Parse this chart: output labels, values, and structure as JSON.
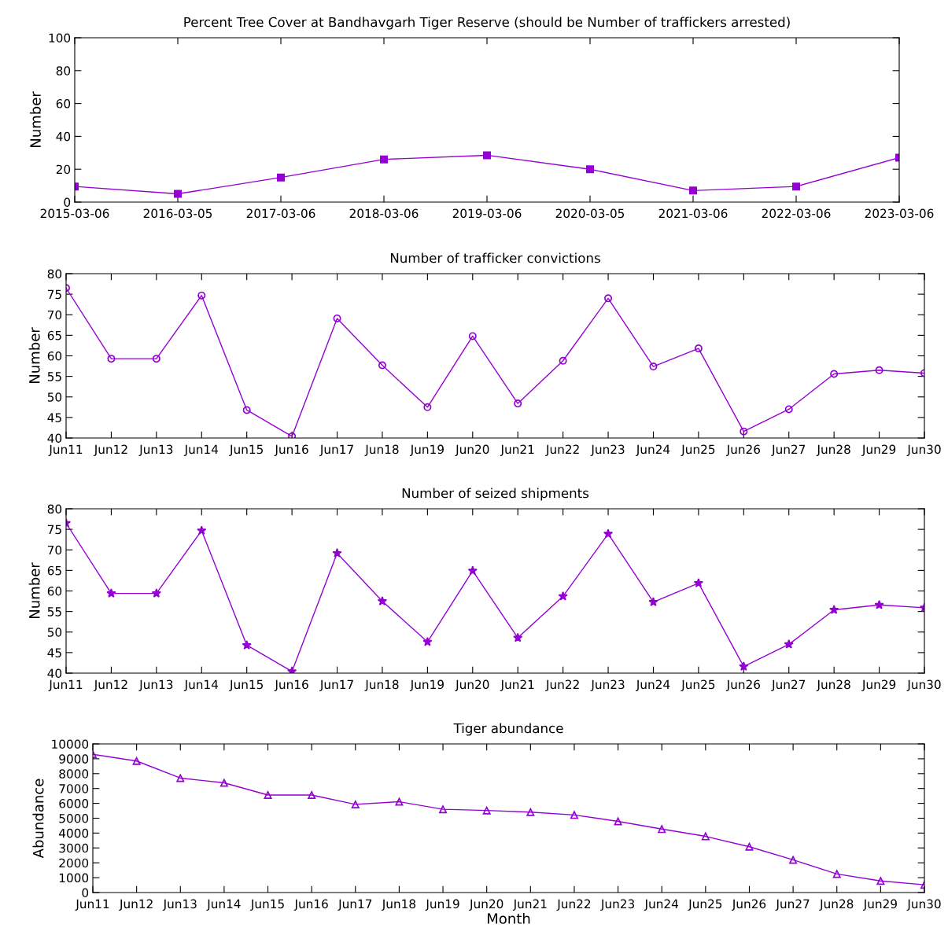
{
  "chart_data": [
    {
      "type": "line",
      "title": "Percent Tree Cover at Bandhavgarh Tiger Reserve (should be Number of traffickers arrested)",
      "ylabel": "Number",
      "categories": [
        "2015-03-06",
        "2016-03-05",
        "2017-03-06",
        "2018-03-06",
        "2019-03-06",
        "2020-03-05",
        "2021-03-06",
        "2022-03-06",
        "2023-03-06"
      ],
      "series": [
        {
          "color": "#9400d3",
          "values": [
            9.5,
            5,
            15,
            26,
            28.5,
            20,
            7,
            9.5,
            27
          ]
        }
      ],
      "ylim": [
        0,
        100
      ],
      "yticks": [
        0,
        20,
        40,
        60,
        80,
        100
      ],
      "grid": false,
      "legend": false,
      "marker": "square",
      "line_style": "solid"
    },
    {
      "type": "line",
      "title": "Number of trafficker convictions",
      "ylabel": "Number",
      "categories": [
        "Jun11",
        "Jun12",
        "Jun13",
        "Jun14",
        "Jun15",
        "Jun16",
        "Jun17",
        "Jun18",
        "Jun19",
        "Jun20",
        "Jun21",
        "Jun22",
        "Jun23",
        "Jun24",
        "Jun25",
        "Jun26",
        "Jun27",
        "Jun28",
        "Jun29",
        "Jun30"
      ],
      "series": [
        {
          "color": "#9400d3",
          "values": [
            76.5,
            59.3,
            59.3,
            74.7,
            46.8,
            40.4,
            69.1,
            57.7,
            47.5,
            64.8,
            48.4,
            58.8,
            74.0,
            57.4,
            61.8,
            41.6,
            47.0,
            55.6,
            56.5,
            55.8
          ]
        }
      ],
      "ylim": [
        40,
        80
      ],
      "yticks": [
        40,
        45,
        50,
        55,
        60,
        65,
        70,
        75,
        80
      ],
      "grid": false,
      "legend": false,
      "marker": "circle",
      "line_style": "solid"
    },
    {
      "type": "line",
      "title": "Number of seized shipments",
      "ylabel": "Number",
      "categories": [
        "Jun11",
        "Jun12",
        "Jun13",
        "Jun14",
        "Jun15",
        "Jun16",
        "Jun17",
        "Jun18",
        "Jun19",
        "Jun20",
        "Jun21",
        "Jun22",
        "Jun23",
        "Jun24",
        "Jun25",
        "Jun26",
        "Jun27",
        "Jun28",
        "Jun29",
        "Jun30"
      ],
      "series": [
        {
          "color": "#9400d3",
          "values": [
            76.5,
            59.4,
            59.4,
            74.7,
            46.8,
            40.4,
            69.2,
            57.5,
            47.6,
            64.9,
            48.6,
            58.7,
            73.9,
            57.3,
            61.9,
            41.6,
            47.0,
            55.4,
            56.6,
            55.9
          ]
        }
      ],
      "ylim": [
        40,
        80
      ],
      "yticks": [
        40,
        45,
        50,
        55,
        60,
        65,
        70,
        75,
        80
      ],
      "grid": false,
      "legend": false,
      "marker": "star",
      "line_style": "solid"
    },
    {
      "type": "line",
      "title": "Tiger abundance",
      "xlabel": "Month",
      "ylabel": "Abundance",
      "categories": [
        "Jun11",
        "Jun12",
        "Jun13",
        "Jun14",
        "Jun15",
        "Jun16",
        "Jun17",
        "Jun18",
        "Jun19",
        "Jun20",
        "Jun21",
        "Jun22",
        "Jun23",
        "Jun24",
        "Jun25",
        "Jun26",
        "Jun27",
        "Jun28",
        "Jun29",
        "Jun30"
      ],
      "series": [
        {
          "color": "#9400d3",
          "values": [
            9300,
            8850,
            7700,
            7380,
            6560,
            6560,
            5930,
            6110,
            5600,
            5520,
            5410,
            5220,
            4790,
            4270,
            3780,
            3080,
            2200,
            1250,
            780,
            520
          ]
        }
      ],
      "ylim": [
        0,
        10000
      ],
      "yticks": [
        0,
        1000,
        2000,
        3000,
        4000,
        5000,
        6000,
        7000,
        8000,
        9000,
        10000
      ],
      "grid": false,
      "legend": false,
      "marker": "triangle",
      "line_style": "solid"
    }
  ]
}
